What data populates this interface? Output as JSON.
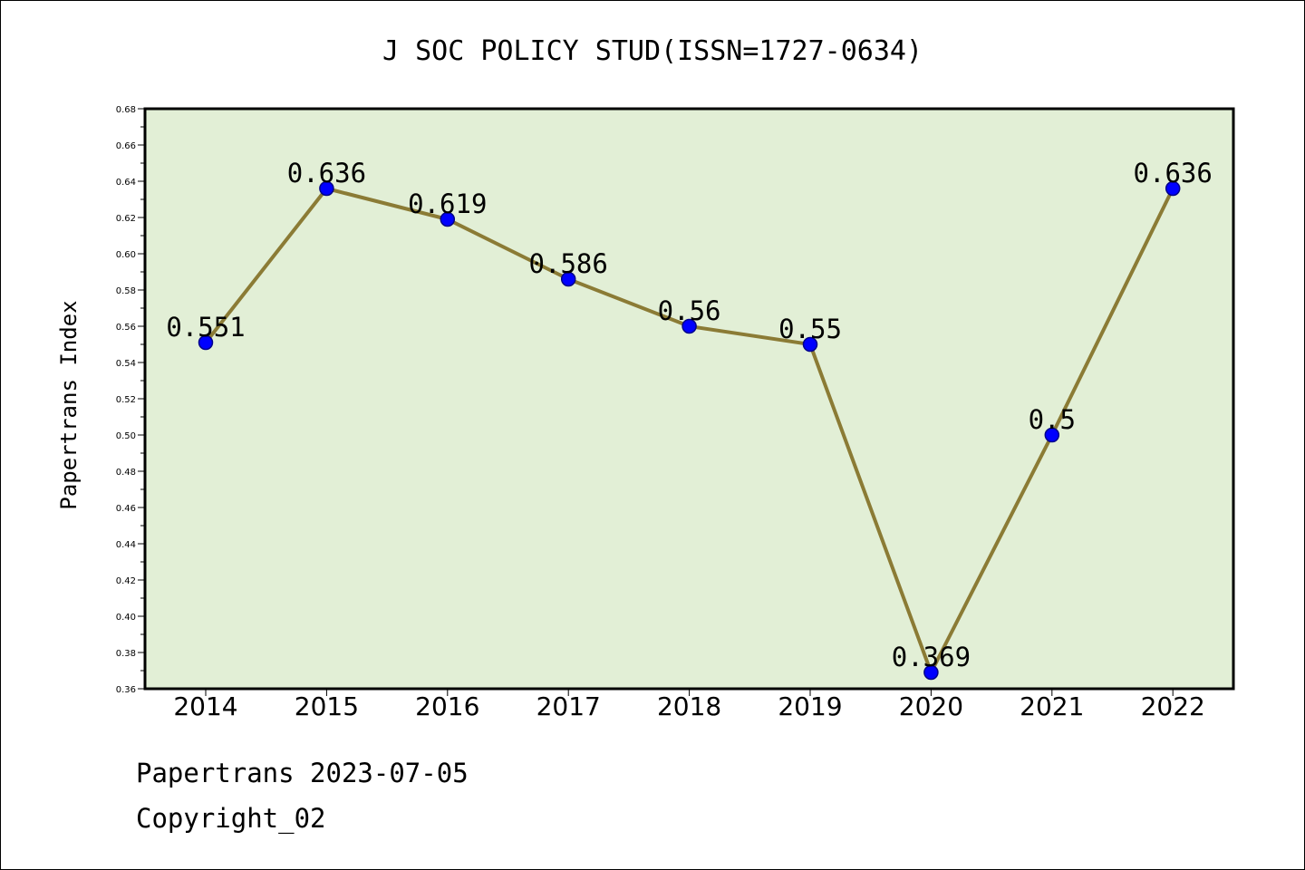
{
  "chart_data": {
    "type": "line",
    "title": "J SOC POLICY STUD(ISSN=1727-0634)",
    "ylabel": "Papertrans Index",
    "xlabel": "",
    "categories": [
      "2014",
      "2015",
      "2016",
      "2017",
      "2018",
      "2019",
      "2020",
      "2021",
      "2022"
    ],
    "values": [
      0.551,
      0.636,
      0.619,
      0.586,
      0.56,
      0.55,
      0.369,
      0.5,
      0.636
    ],
    "data_labels": [
      "0.551",
      "0.636",
      "0.619",
      "0.586",
      "0.56",
      "0.55",
      "0.369",
      "0.5",
      "0.636"
    ],
    "ylim": [
      0.36,
      0.68
    ],
    "y_ticks": [
      "0.36",
      "0.38",
      "0.40",
      "0.42",
      "0.44",
      "0.46",
      "0.48",
      "0.50",
      "0.52",
      "0.54",
      "0.56",
      "0.58",
      "0.60",
      "0.62",
      "0.64",
      "0.66",
      "0.68"
    ],
    "grid": false,
    "legend": "none",
    "colors": {
      "plot_background": "#e2efd6",
      "line": "#8b7b35",
      "marker": "#0000ff",
      "marker_edge": "#00008b"
    }
  },
  "footer": {
    "line1": "Papertrans 2023-07-05",
    "line2": "Copyright_02"
  }
}
